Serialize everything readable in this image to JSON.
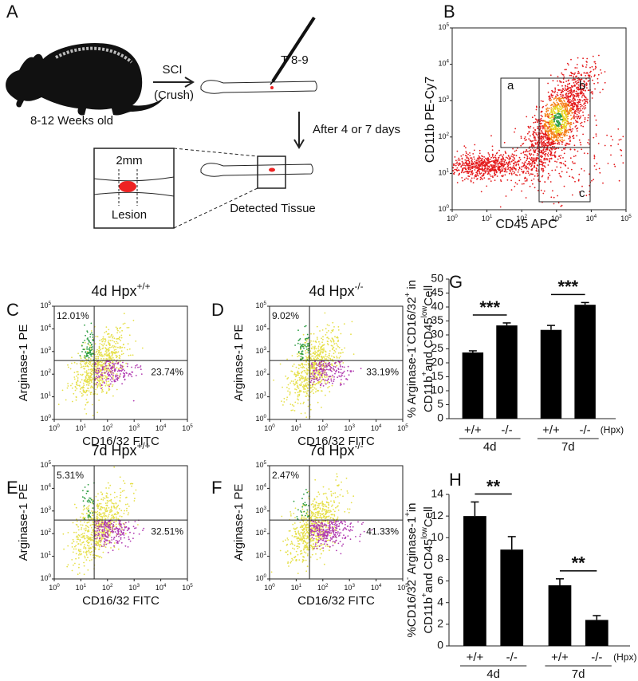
{
  "panel_labels": [
    "A",
    "B",
    "C",
    "D",
    "E",
    "F",
    "G",
    "H"
  ],
  "schematic": {
    "mouse_age": "8-12 Weeks old",
    "injury": "SCI",
    "injury_type": "(Crush)",
    "level": "T 8-9",
    "interval": "After 4 or 7 days",
    "lesion_size": "2mm",
    "lesion": "Lesion",
    "tissue": "Detected Tissue"
  },
  "log_axis": {
    "base": "10",
    "exponents": [
      "0",
      "1",
      "2",
      "3",
      "4",
      "5"
    ]
  },
  "flow_b": {
    "y_label": "CD11b PE-Cy7",
    "x_label": "CD45 APC",
    "gates": [
      "a",
      "b",
      "c"
    ]
  },
  "flow_axes": {
    "y_label": "Arginase-1 PE",
    "x_label": "CD16/32 FITC"
  },
  "flow_plots": [
    {
      "title": [
        {
          "text": "4d Hpx"
        },
        {
          "text": "+/+",
          "sup": true
        }
      ],
      "upper_left": "12.01%",
      "lower_right": "23.74%"
    },
    {
      "title": [
        {
          "text": "4d Hpx"
        },
        {
          "text": "-/-",
          "sup": true
        }
      ],
      "upper_left": "9.02%",
      "lower_right": "33.19%"
    },
    {
      "title": [
        {
          "text": "7d Hpx"
        },
        {
          "text": "+/+",
          "sup": true
        }
      ],
      "upper_left": "5.31%",
      "lower_right": "32.51%"
    },
    {
      "title": [
        {
          "text": "7d Hpx"
        },
        {
          "text": "-/-",
          "sup": true
        }
      ],
      "upper_left": "2.47%",
      "lower_right": "41.33%"
    }
  ],
  "chart_data": [
    {
      "type": "bar",
      "y_label": [
        [
          {
            "text": "% Arginase-1"
          },
          {
            "text": "-",
            "sup": true
          },
          {
            "text": "CD16/32"
          },
          {
            "text": "+",
            "sup": true
          },
          {
            "text": " in"
          }
        ],
        [
          {
            "text": "CD11b"
          },
          {
            "text": "+",
            "sup": true
          },
          {
            "text": "and CD45"
          },
          {
            "text": "low",
            "sup": true
          },
          {
            "text": "Cell"
          }
        ]
      ],
      "categories": [
        "+/+",
        "-/-",
        "+/+",
        "-/-"
      ],
      "unit_label": "(Hpx)",
      "groups": [
        "4d",
        "7d"
      ],
      "values": [
        23.7,
        33.4,
        31.8,
        40.8
      ],
      "errors": [
        0.6,
        0.9,
        1.6,
        0.8
      ],
      "significance": [
        "***",
        "***"
      ],
      "color": "#000000",
      "ylim": [
        0,
        50
      ],
      "yticks": [
        0,
        5,
        10,
        15,
        20,
        25,
        30,
        35,
        40,
        45,
        50
      ]
    },
    {
      "type": "bar",
      "y_label": [
        [
          {
            "text": "%CD16/32"
          },
          {
            "text": "-",
            "sup": true
          },
          {
            "text": " Arginase-1"
          },
          {
            "text": "+",
            "sup": true
          },
          {
            "text": "in"
          }
        ],
        [
          {
            "text": "CD11b"
          },
          {
            "text": "+",
            "sup": true
          },
          {
            "text": "and CD45"
          },
          {
            "text": "low",
            "sup": true
          },
          {
            "text": "Cell"
          }
        ]
      ],
      "categories": [
        "+/+",
        "-/-",
        "+/+",
        "-/-"
      ],
      "unit_label": "(Hpx)",
      "groups": [
        "4d",
        "7d"
      ],
      "values": [
        12.0,
        8.9,
        5.6,
        2.4
      ],
      "errors": [
        1.3,
        1.2,
        0.6,
        0.4
      ],
      "significance": [
        "**",
        "**"
      ],
      "color": "#000000",
      "ylim": [
        0,
        14
      ],
      "yticks": [
        0,
        2,
        4,
        6,
        8,
        10,
        12,
        14
      ]
    }
  ]
}
